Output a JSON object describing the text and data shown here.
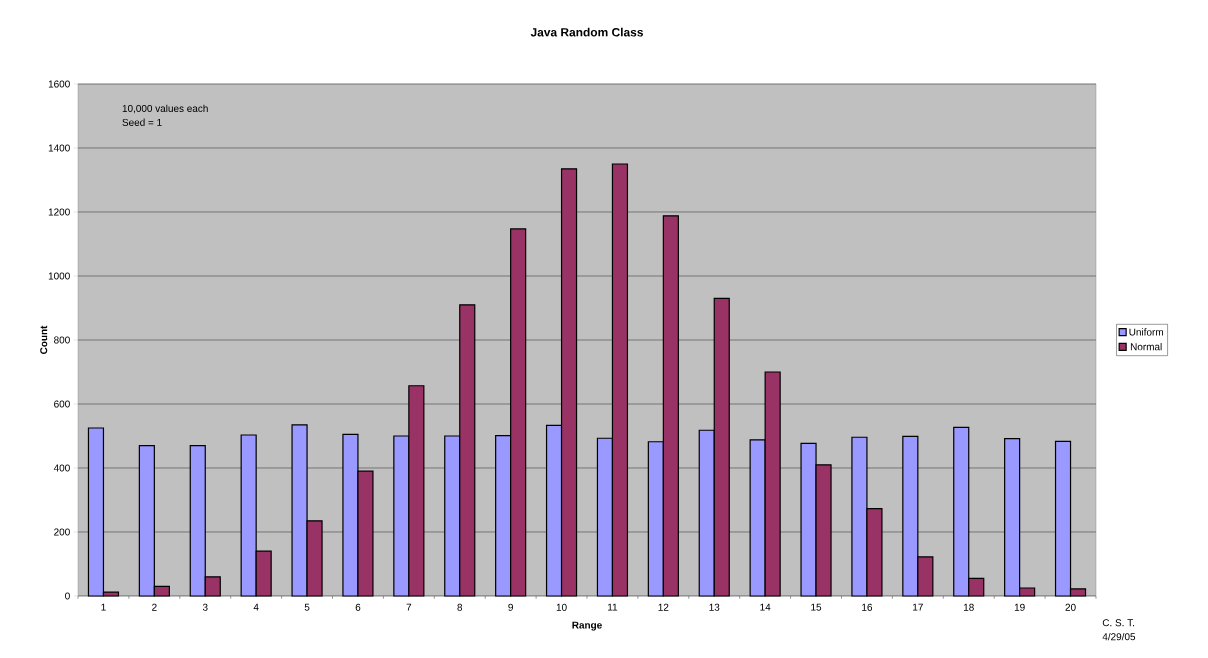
{
  "chart_data": {
    "type": "bar",
    "title": "Java Random Class",
    "xlabel": "Range",
    "ylabel": "Count",
    "categories": [
      "1",
      "2",
      "3",
      "4",
      "5",
      "6",
      "7",
      "8",
      "9",
      "10",
      "11",
      "12",
      "13",
      "14",
      "15",
      "16",
      "17",
      "18",
      "19",
      "20"
    ],
    "series": [
      {
        "name": "Uniform",
        "color": "#9999ff",
        "values": [
          525,
          470,
          470,
          503,
          535,
          505,
          500,
          500,
          501,
          533,
          493,
          482,
          518,
          488,
          477,
          496,
          499,
          527,
          492,
          483
        ]
      },
      {
        "name": "Normal",
        "color": "#993366",
        "values": [
          12,
          30,
          60,
          140,
          235,
          390,
          657,
          910,
          1147,
          1335,
          1350,
          1188,
          930,
          700,
          410,
          273,
          122,
          55,
          25,
          22
        ]
      }
    ],
    "ylim": [
      0,
      1600
    ],
    "yticks": [
      0,
      200,
      400,
      600,
      800,
      1000,
      1200,
      1400,
      1600
    ],
    "grid": "y",
    "legend": "right",
    "annotations": [
      "10,000 values  each",
      "Seed = 1",
      "C. S. T.",
      "4/29/05"
    ]
  }
}
